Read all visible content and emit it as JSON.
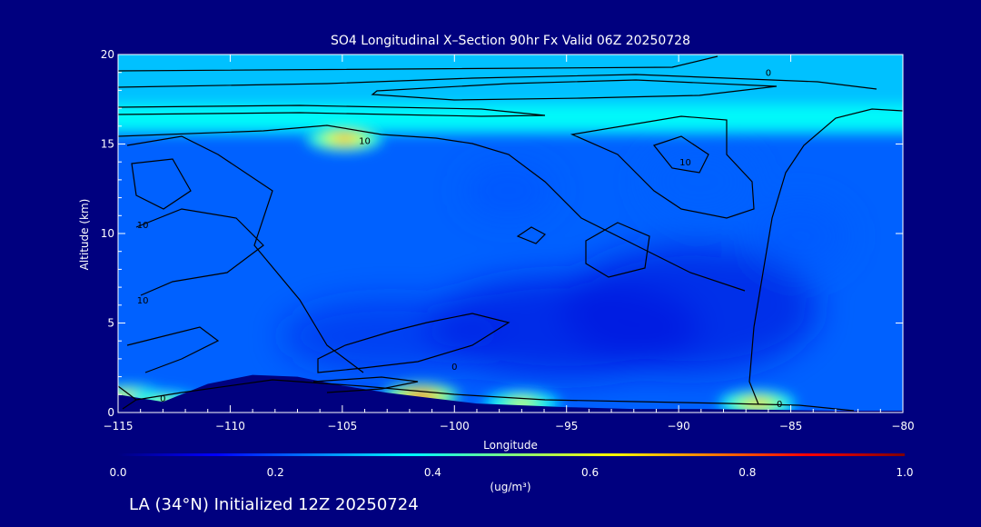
{
  "chart_data": {
    "type": "heatmap",
    "title": "SO4 Longitudinal X–Section 90hr  Fx Valid 06Z 20250728",
    "xlabel": "Longitude",
    "ylabel": "Altitude (km)",
    "xlim": [
      -115,
      -80
    ],
    "ylim": [
      0,
      20
    ],
    "x_ticks": [
      -115,
      -110,
      -105,
      -100,
      -95,
      -90,
      -85,
      -80
    ],
    "x_tick_labels": [
      "−115",
      "−110",
      "−105",
      "−100",
      "−95",
      "−90",
      "−85",
      "−80"
    ],
    "y_ticks": [
      0,
      5,
      10,
      15,
      20
    ],
    "y_tick_labels": [
      "0",
      "5",
      "10",
      "15",
      "20"
    ],
    "colorbar": {
      "range": [
        0.0,
        1.0
      ],
      "ticks": [
        0.0,
        0.2,
        0.4,
        0.6,
        0.8,
        1.0
      ],
      "tick_labels": [
        "0.0",
        "0.2",
        "0.4",
        "0.6",
        "0.8",
        "1.0"
      ],
      "units": "(ug/m³)",
      "colors": [
        "#00007f",
        "#0000ff",
        "#0080ff",
        "#00ffff",
        "#80ff80",
        "#ffff00",
        "#ff8000",
        "#ff0000",
        "#7f0000"
      ]
    },
    "background_level": 0.22,
    "stratosphere_band": {
      "y_range": [
        15.5,
        20
      ],
      "value": 0.33
    },
    "hotspots": [
      {
        "lon": -104.9,
        "alt": 15.3,
        "value": 0.75
      },
      {
        "lon": -101.5,
        "alt": 0.9,
        "value": 0.85
      },
      {
        "lon": -97.0,
        "alt": 0.5,
        "value": 0.6
      },
      {
        "lon": -86.5,
        "alt": 0.5,
        "value": 0.7
      },
      {
        "lon": -114.5,
        "alt": 0.8,
        "value": 0.7
      },
      {
        "lon": -113.0,
        "alt": 0.5,
        "value": 0.55
      }
    ],
    "terrain": [
      {
        "lon": -115,
        "alt": 1.0
      },
      {
        "lon": -113,
        "alt": 0.6
      },
      {
        "lon": -111,
        "alt": 1.6
      },
      {
        "lon": -109,
        "alt": 2.1
      },
      {
        "lon": -107,
        "alt": 2.0
      },
      {
        "lon": -105,
        "alt": 1.5
      },
      {
        "lon": -103,
        "alt": 1.1
      },
      {
        "lon": -101,
        "alt": 0.8
      },
      {
        "lon": -99,
        "alt": 0.5
      },
      {
        "lon": -97,
        "alt": 0.4
      },
      {
        "lon": -95,
        "alt": 0.3
      },
      {
        "lon": -92,
        "alt": 0.2
      },
      {
        "lon": -89,
        "alt": 0.2
      },
      {
        "lon": -86,
        "alt": 0.15
      },
      {
        "lon": -83,
        "alt": 0.1
      },
      {
        "lon": -80,
        "alt": 0.1
      }
    ],
    "contour_labels": [
      {
        "text": "0",
        "lon": -86.0,
        "alt": 19.0
      },
      {
        "text": "10",
        "lon": -104.0,
        "alt": 15.2
      },
      {
        "text": "10",
        "lon": -89.7,
        "alt": 14.0
      },
      {
        "text": "10",
        "lon": -113.9,
        "alt": 10.5
      },
      {
        "text": "10",
        "lon": -113.9,
        "alt": 6.3
      },
      {
        "text": "0",
        "lon": -100.0,
        "alt": 2.6
      },
      {
        "text": "0",
        "lon": -113.0,
        "alt": 0.8
      },
      {
        "text": "0",
        "lon": -85.5,
        "alt": 0.5
      }
    ],
    "subtitle": "LA (34°N) Initialized 12Z 20250724"
  }
}
